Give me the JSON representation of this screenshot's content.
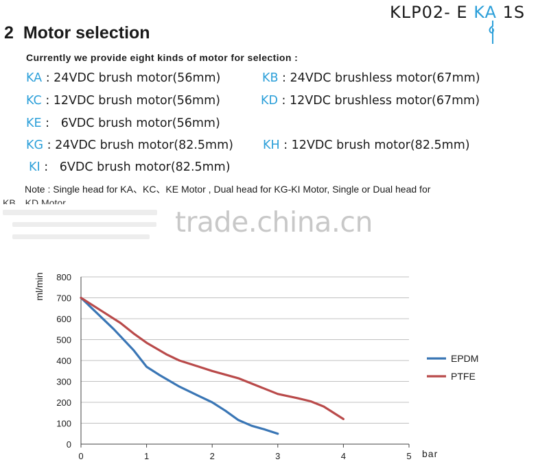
{
  "header": {
    "model_prefix": "KLP02- E",
    "model_accent": "KA",
    "model_suffix": "1S"
  },
  "section": {
    "number": "2",
    "title": "Motor selection",
    "intro": "Currently we provide eight kinds of motor for selection :"
  },
  "motors": [
    {
      "code": "KA",
      "sep": " : ",
      "desc": "24VDC brush motor(56mm)"
    },
    {
      "code": "KB",
      "sep": " : ",
      "desc": "24VDC brushless motor(67mm)"
    },
    {
      "code": "KC",
      "sep": " : ",
      "desc": "12VDC brush motor(56mm)"
    },
    {
      "code": "KD",
      "sep": " : ",
      "desc": "12VDC brushless motor(67mm)"
    },
    {
      "code": "KE",
      "sep": " :   ",
      "desc": "6VDC brush motor(56mm)"
    },
    {
      "code": "KG",
      "sep": " : ",
      "desc": "24VDC brush motor(82.5mm)"
    },
    {
      "code": "KH",
      "sep": " : ",
      "desc": "12VDC brush motor(82.5mm)"
    },
    {
      "code": "KI",
      "sep": " :   ",
      "desc": "6VDC brush motor(82.5mm)"
    }
  ],
  "note": "Note : Single head for KA、KC、KE Motor , Dual head for KG-KI Motor, Single or Dual head for",
  "note_continued": "KB、KD Motor",
  "watermark": "trade.china.cn",
  "colors": {
    "accent": "#2b9fd9",
    "epdm": "#3a76b5",
    "ptfe": "#b94a4a",
    "grid": "#c0c0c0"
  },
  "chart_data": {
    "type": "line",
    "xlabel": "bar",
    "ylabel": "ml/min",
    "xlim": [
      0,
      5
    ],
    "ylim": [
      0,
      800
    ],
    "xticks": [
      "0",
      "1",
      "2",
      "3",
      "4",
      "5"
    ],
    "yticks": [
      "0",
      "100",
      "200",
      "300",
      "400",
      "500",
      "600",
      "700",
      "800"
    ],
    "grid": "horizontal",
    "legend_position": "right",
    "series": [
      {
        "name": "EPDM",
        "color": "#3a76b5",
        "x": [
          0,
          0.2,
          0.5,
          0.8,
          1.0,
          1.2,
          1.5,
          1.8,
          2.0,
          2.2,
          2.4,
          2.6,
          2.8,
          3.0
        ],
        "y": [
          700,
          640,
          550,
          450,
          370,
          330,
          275,
          230,
          200,
          160,
          115,
          88,
          70,
          50
        ]
      },
      {
        "name": "PTFE",
        "color": "#b94a4a",
        "x": [
          0,
          0.3,
          0.6,
          0.8,
          1.0,
          1.3,
          1.5,
          1.8,
          2.0,
          2.4,
          2.8,
          3.0,
          3.3,
          3.5,
          3.7,
          4.0
        ],
        "y": [
          700,
          640,
          580,
          530,
          485,
          430,
          400,
          370,
          350,
          315,
          265,
          240,
          220,
          205,
          180,
          120
        ]
      }
    ]
  }
}
